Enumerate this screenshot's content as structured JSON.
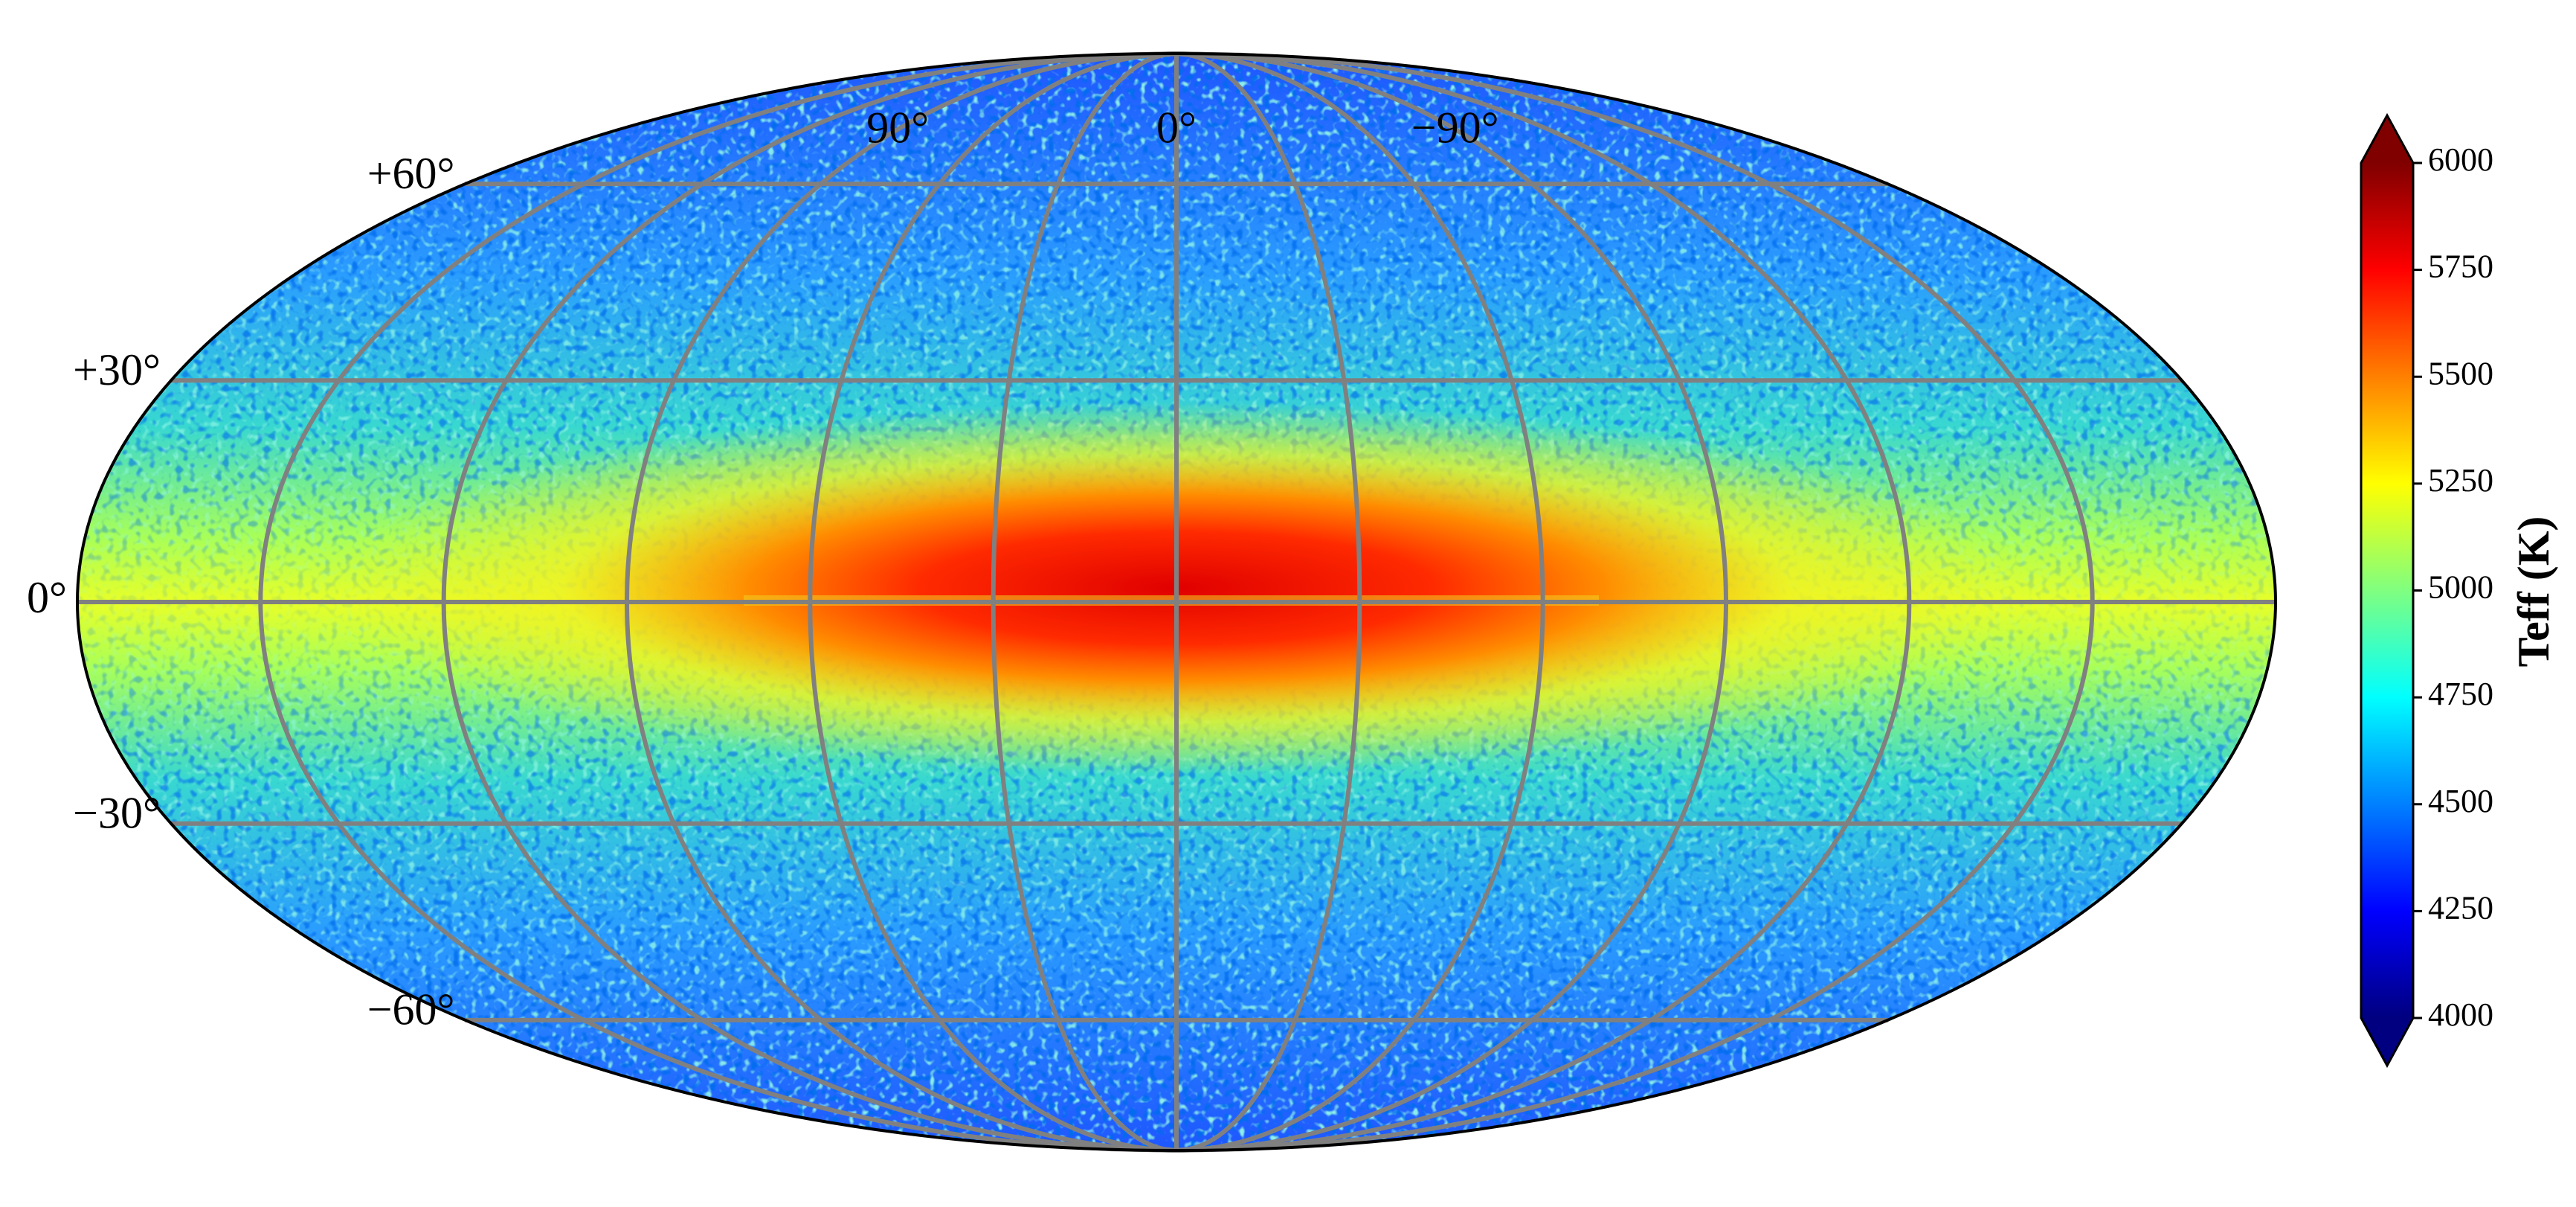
{
  "chart_data": {
    "type": "skymap",
    "projection": "mollweide",
    "colormap": "jet",
    "extend": "both",
    "colorbar_label": "Teff (K)",
    "clim": [
      4000,
      6000
    ],
    "cticks": [
      4000,
      4250,
      4500,
      4750,
      5000,
      5250,
      5500,
      5750,
      6000
    ],
    "xlim": [
      180,
      -180
    ],
    "ylim": [
      -90,
      90
    ],
    "xticks": [
      {
        "value": 90,
        "label": "90°"
      },
      {
        "value": 0,
        "label": "0°"
      },
      {
        "value": -90,
        "label": "−90°"
      }
    ],
    "yticks": [
      {
        "value": 60,
        "label": "+60°"
      },
      {
        "value": 30,
        "label": "+30°"
      },
      {
        "value": 0,
        "label": "0°"
      },
      {
        "value": -30,
        "label": "−30°"
      },
      {
        "value": -60,
        "label": "−60°"
      }
    ],
    "meridians": [
      -150,
      -120,
      -90,
      -60,
      -30,
      0,
      30,
      60,
      90,
      120,
      150
    ],
    "grid": true,
    "grid_color": "#808080"
  }
}
